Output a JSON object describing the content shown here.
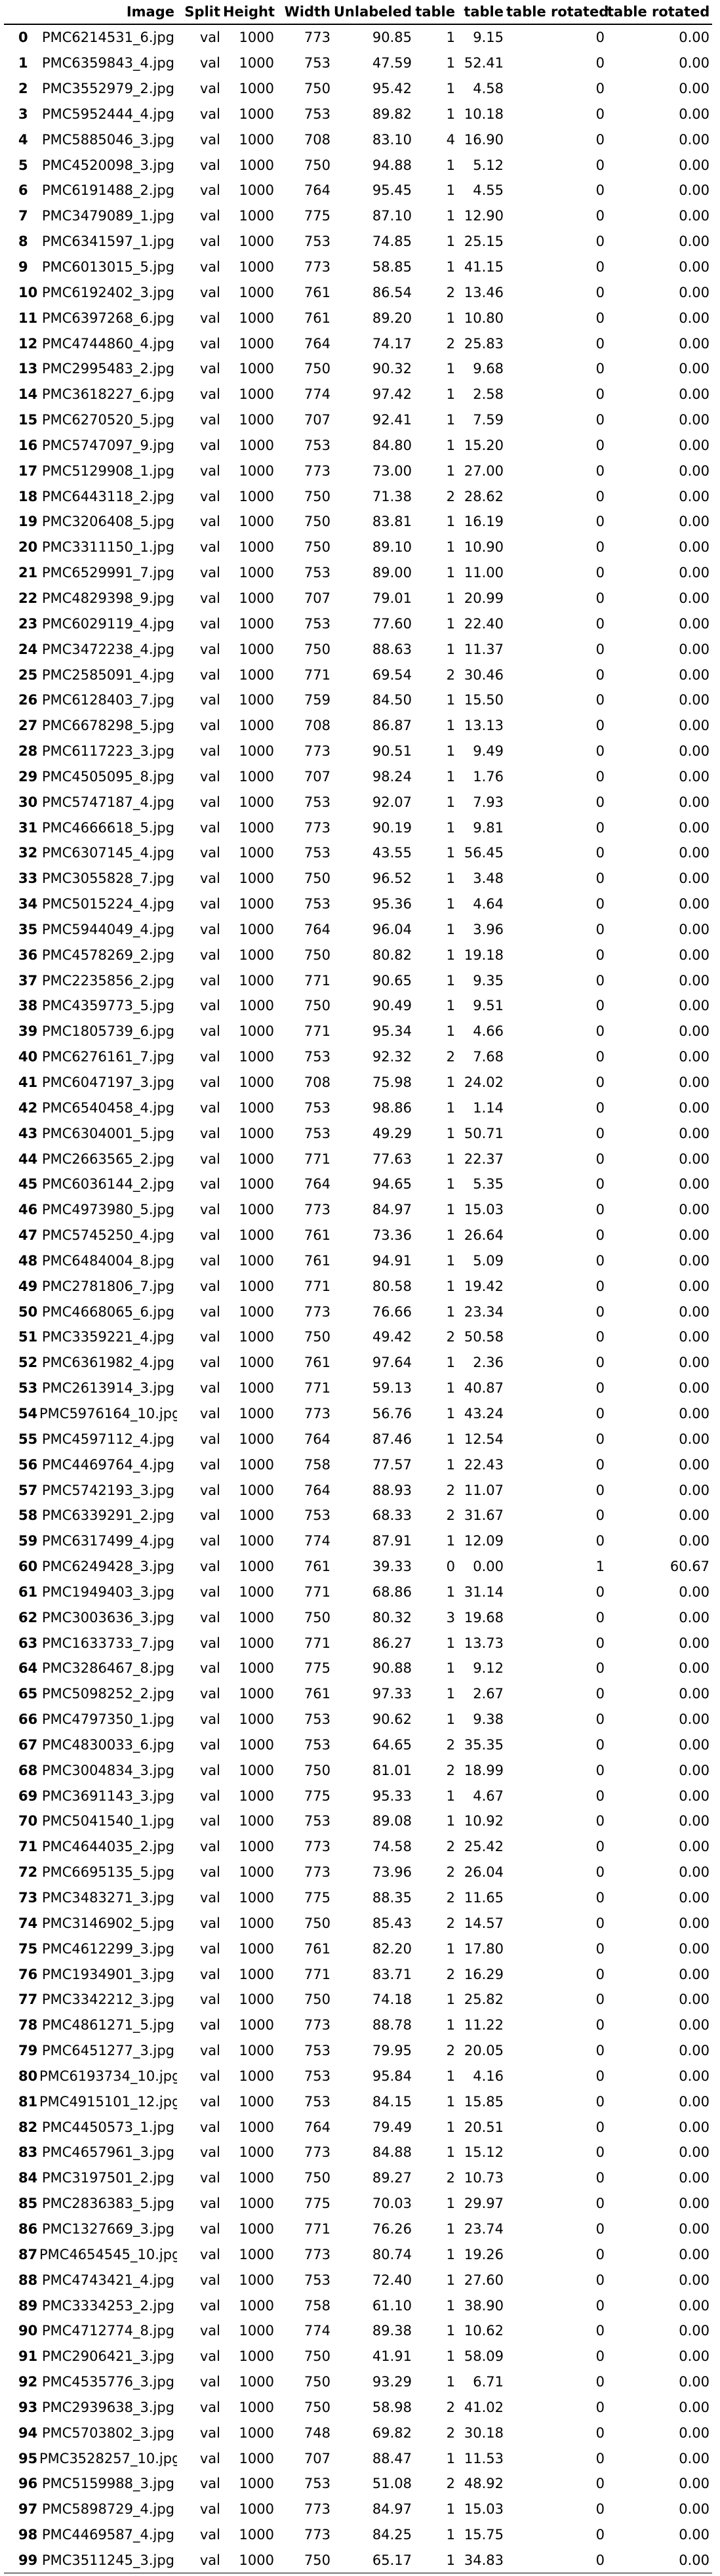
{
  "columns": [
    "",
    "Image",
    "Split",
    "Height",
    "Width",
    "Unlabeled",
    "table",
    "table",
    "table rotated",
    "table rotated"
  ],
  "rows": [
    [
      "0",
      "PMC6214531_6.jpg",
      "val",
      "1000",
      "773",
      "90.85",
      "1",
      "9.15",
      "0",
      "0.00"
    ],
    [
      "1",
      "PMC6359843_4.jpg",
      "val",
      "1000",
      "753",
      "47.59",
      "1",
      "52.41",
      "0",
      "0.00"
    ],
    [
      "2",
      "PMC3552979_2.jpg",
      "val",
      "1000",
      "750",
      "95.42",
      "1",
      "4.58",
      "0",
      "0.00"
    ],
    [
      "3",
      "PMC5952444_4.jpg",
      "val",
      "1000",
      "753",
      "89.82",
      "1",
      "10.18",
      "0",
      "0.00"
    ],
    [
      "4",
      "PMC5885046_3.jpg",
      "val",
      "1000",
      "708",
      "83.10",
      "4",
      "16.90",
      "0",
      "0.00"
    ],
    [
      "5",
      "PMC4520098_3.jpg",
      "val",
      "1000",
      "750",
      "94.88",
      "1",
      "5.12",
      "0",
      "0.00"
    ],
    [
      "6",
      "PMC6191488_2.jpg",
      "val",
      "1000",
      "764",
      "95.45",
      "1",
      "4.55",
      "0",
      "0.00"
    ],
    [
      "7",
      "PMC3479089_1.jpg",
      "val",
      "1000",
      "775",
      "87.10",
      "1",
      "12.90",
      "0",
      "0.00"
    ],
    [
      "8",
      "PMC6341597_1.jpg",
      "val",
      "1000",
      "753",
      "74.85",
      "1",
      "25.15",
      "0",
      "0.00"
    ],
    [
      "9",
      "PMC6013015_5.jpg",
      "val",
      "1000",
      "773",
      "58.85",
      "1",
      "41.15",
      "0",
      "0.00"
    ],
    [
      "10",
      "PMC6192402_3.jpg",
      "val",
      "1000",
      "761",
      "86.54",
      "2",
      "13.46",
      "0",
      "0.00"
    ],
    [
      "11",
      "PMC6397268_6.jpg",
      "val",
      "1000",
      "761",
      "89.20",
      "1",
      "10.80",
      "0",
      "0.00"
    ],
    [
      "12",
      "PMC4744860_4.jpg",
      "val",
      "1000",
      "764",
      "74.17",
      "2",
      "25.83",
      "0",
      "0.00"
    ],
    [
      "13",
      "PMC2995483_2.jpg",
      "val",
      "1000",
      "750",
      "90.32",
      "1",
      "9.68",
      "0",
      "0.00"
    ],
    [
      "14",
      "PMC3618227_6.jpg",
      "val",
      "1000",
      "774",
      "97.42",
      "1",
      "2.58",
      "0",
      "0.00"
    ],
    [
      "15",
      "PMC6270520_5.jpg",
      "val",
      "1000",
      "707",
      "92.41",
      "1",
      "7.59",
      "0",
      "0.00"
    ],
    [
      "16",
      "PMC5747097_9.jpg",
      "val",
      "1000",
      "753",
      "84.80",
      "1",
      "15.20",
      "0",
      "0.00"
    ],
    [
      "17",
      "PMC5129908_1.jpg",
      "val",
      "1000",
      "773",
      "73.00",
      "1",
      "27.00",
      "0",
      "0.00"
    ],
    [
      "18",
      "PMC6443118_2.jpg",
      "val",
      "1000",
      "750",
      "71.38",
      "2",
      "28.62",
      "0",
      "0.00"
    ],
    [
      "19",
      "PMC3206408_5.jpg",
      "val",
      "1000",
      "750",
      "83.81",
      "1",
      "16.19",
      "0",
      "0.00"
    ],
    [
      "20",
      "PMC3311150_1.jpg",
      "val",
      "1000",
      "750",
      "89.10",
      "1",
      "10.90",
      "0",
      "0.00"
    ],
    [
      "21",
      "PMC6529991_7.jpg",
      "val",
      "1000",
      "753",
      "89.00",
      "1",
      "11.00",
      "0",
      "0.00"
    ],
    [
      "22",
      "PMC4829398_9.jpg",
      "val",
      "1000",
      "707",
      "79.01",
      "1",
      "20.99",
      "0",
      "0.00"
    ],
    [
      "23",
      "PMC6029119_4.jpg",
      "val",
      "1000",
      "753",
      "77.60",
      "1",
      "22.40",
      "0",
      "0.00"
    ],
    [
      "24",
      "PMC3472238_4.jpg",
      "val",
      "1000",
      "750",
      "88.63",
      "1",
      "11.37",
      "0",
      "0.00"
    ],
    [
      "25",
      "PMC2585091_4.jpg",
      "val",
      "1000",
      "771",
      "69.54",
      "2",
      "30.46",
      "0",
      "0.00"
    ],
    [
      "26",
      "PMC6128403_7.jpg",
      "val",
      "1000",
      "759",
      "84.50",
      "1",
      "15.50",
      "0",
      "0.00"
    ],
    [
      "27",
      "PMC6678298_5.jpg",
      "val",
      "1000",
      "708",
      "86.87",
      "1",
      "13.13",
      "0",
      "0.00"
    ],
    [
      "28",
      "PMC6117223_3.jpg",
      "val",
      "1000",
      "773",
      "90.51",
      "1",
      "9.49",
      "0",
      "0.00"
    ],
    [
      "29",
      "PMC4505095_8.jpg",
      "val",
      "1000",
      "707",
      "98.24",
      "1",
      "1.76",
      "0",
      "0.00"
    ],
    [
      "30",
      "PMC5747187_4.jpg",
      "val",
      "1000",
      "753",
      "92.07",
      "1",
      "7.93",
      "0",
      "0.00"
    ],
    [
      "31",
      "PMC4666618_5.jpg",
      "val",
      "1000",
      "773",
      "90.19",
      "1",
      "9.81",
      "0",
      "0.00"
    ],
    [
      "32",
      "PMC6307145_4.jpg",
      "val",
      "1000",
      "753",
      "43.55",
      "1",
      "56.45",
      "0",
      "0.00"
    ],
    [
      "33",
      "PMC3055828_7.jpg",
      "val",
      "1000",
      "750",
      "96.52",
      "1",
      "3.48",
      "0",
      "0.00"
    ],
    [
      "34",
      "PMC5015224_4.jpg",
      "val",
      "1000",
      "753",
      "95.36",
      "1",
      "4.64",
      "0",
      "0.00"
    ],
    [
      "35",
      "PMC5944049_4.jpg",
      "val",
      "1000",
      "764",
      "96.04",
      "1",
      "3.96",
      "0",
      "0.00"
    ],
    [
      "36",
      "PMC4578269_2.jpg",
      "val",
      "1000",
      "750",
      "80.82",
      "1",
      "19.18",
      "0",
      "0.00"
    ],
    [
      "37",
      "PMC2235856_2.jpg",
      "val",
      "1000",
      "771",
      "90.65",
      "1",
      "9.35",
      "0",
      "0.00"
    ],
    [
      "38",
      "PMC4359773_5.jpg",
      "val",
      "1000",
      "750",
      "90.49",
      "1",
      "9.51",
      "0",
      "0.00"
    ],
    [
      "39",
      "PMC1805739_6.jpg",
      "val",
      "1000",
      "771",
      "95.34",
      "1",
      "4.66",
      "0",
      "0.00"
    ],
    [
      "40",
      "PMC6276161_7.jpg",
      "val",
      "1000",
      "753",
      "92.32",
      "2",
      "7.68",
      "0",
      "0.00"
    ],
    [
      "41",
      "PMC6047197_3.jpg",
      "val",
      "1000",
      "708",
      "75.98",
      "1",
      "24.02",
      "0",
      "0.00"
    ],
    [
      "42",
      "PMC6540458_4.jpg",
      "val",
      "1000",
      "753",
      "98.86",
      "1",
      "1.14",
      "0",
      "0.00"
    ],
    [
      "43",
      "PMC6304001_5.jpg",
      "val",
      "1000",
      "753",
      "49.29",
      "1",
      "50.71",
      "0",
      "0.00"
    ],
    [
      "44",
      "PMC2663565_2.jpg",
      "val",
      "1000",
      "771",
      "77.63",
      "1",
      "22.37",
      "0",
      "0.00"
    ],
    [
      "45",
      "PMC6036144_2.jpg",
      "val",
      "1000",
      "764",
      "94.65",
      "1",
      "5.35",
      "0",
      "0.00"
    ],
    [
      "46",
      "PMC4973980_5.jpg",
      "val",
      "1000",
      "773",
      "84.97",
      "1",
      "15.03",
      "0",
      "0.00"
    ],
    [
      "47",
      "PMC5745250_4.jpg",
      "val",
      "1000",
      "761",
      "73.36",
      "1",
      "26.64",
      "0",
      "0.00"
    ],
    [
      "48",
      "PMC6484004_8.jpg",
      "val",
      "1000",
      "761",
      "94.91",
      "1",
      "5.09",
      "0",
      "0.00"
    ],
    [
      "49",
      "PMC2781806_7.jpg",
      "val",
      "1000",
      "771",
      "80.58",
      "1",
      "19.42",
      "0",
      "0.00"
    ],
    [
      "50",
      "PMC4668065_6.jpg",
      "val",
      "1000",
      "773",
      "76.66",
      "1",
      "23.34",
      "0",
      "0.00"
    ],
    [
      "51",
      "PMC3359221_4.jpg",
      "val",
      "1000",
      "750",
      "49.42",
      "2",
      "50.58",
      "0",
      "0.00"
    ],
    [
      "52",
      "PMC6361982_4.jpg",
      "val",
      "1000",
      "761",
      "97.64",
      "1",
      "2.36",
      "0",
      "0.00"
    ],
    [
      "53",
      "PMC2613914_3.jpg",
      "val",
      "1000",
      "771",
      "59.13",
      "1",
      "40.87",
      "0",
      "0.00"
    ],
    [
      "54",
      "PMC5976164_10.jpg",
      "val",
      "1000",
      "773",
      "56.76",
      "1",
      "43.24",
      "0",
      "0.00"
    ],
    [
      "55",
      "PMC4597112_4.jpg",
      "val",
      "1000",
      "764",
      "87.46",
      "1",
      "12.54",
      "0",
      "0.00"
    ],
    [
      "56",
      "PMC4469764_4.jpg",
      "val",
      "1000",
      "758",
      "77.57",
      "1",
      "22.43",
      "0",
      "0.00"
    ],
    [
      "57",
      "PMC5742193_3.jpg",
      "val",
      "1000",
      "764",
      "88.93",
      "2",
      "11.07",
      "0",
      "0.00"
    ],
    [
      "58",
      "PMC6339291_2.jpg",
      "val",
      "1000",
      "753",
      "68.33",
      "2",
      "31.67",
      "0",
      "0.00"
    ],
    [
      "59",
      "PMC6317499_4.jpg",
      "val",
      "1000",
      "774",
      "87.91",
      "1",
      "12.09",
      "0",
      "0.00"
    ],
    [
      "60",
      "PMC6249428_3.jpg",
      "val",
      "1000",
      "761",
      "39.33",
      "0",
      "0.00",
      "1",
      "60.67"
    ],
    [
      "61",
      "PMC1949403_3.jpg",
      "val",
      "1000",
      "771",
      "68.86",
      "1",
      "31.14",
      "0",
      "0.00"
    ],
    [
      "62",
      "PMC3003636_3.jpg",
      "val",
      "1000",
      "750",
      "80.32",
      "3",
      "19.68",
      "0",
      "0.00"
    ],
    [
      "63",
      "PMC1633733_7.jpg",
      "val",
      "1000",
      "771",
      "86.27",
      "1",
      "13.73",
      "0",
      "0.00"
    ],
    [
      "64",
      "PMC3286467_8.jpg",
      "val",
      "1000",
      "775",
      "90.88",
      "1",
      "9.12",
      "0",
      "0.00"
    ],
    [
      "65",
      "PMC5098252_2.jpg",
      "val",
      "1000",
      "761",
      "97.33",
      "1",
      "2.67",
      "0",
      "0.00"
    ],
    [
      "66",
      "PMC4797350_1.jpg",
      "val",
      "1000",
      "753",
      "90.62",
      "1",
      "9.38",
      "0",
      "0.00"
    ],
    [
      "67",
      "PMC4830033_6.jpg",
      "val",
      "1000",
      "753",
      "64.65",
      "2",
      "35.35",
      "0",
      "0.00"
    ],
    [
      "68",
      "PMC3004834_3.jpg",
      "val",
      "1000",
      "750",
      "81.01",
      "2",
      "18.99",
      "0",
      "0.00"
    ],
    [
      "69",
      "PMC3691143_3.jpg",
      "val",
      "1000",
      "775",
      "95.33",
      "1",
      "4.67",
      "0",
      "0.00"
    ],
    [
      "70",
      "PMC5041540_1.jpg",
      "val",
      "1000",
      "753",
      "89.08",
      "1",
      "10.92",
      "0",
      "0.00"
    ],
    [
      "71",
      "PMC4644035_2.jpg",
      "val",
      "1000",
      "773",
      "74.58",
      "2",
      "25.42",
      "0",
      "0.00"
    ],
    [
      "72",
      "PMC6695135_5.jpg",
      "val",
      "1000",
      "773",
      "73.96",
      "2",
      "26.04",
      "0",
      "0.00"
    ],
    [
      "73",
      "PMC3483271_3.jpg",
      "val",
      "1000",
      "775",
      "88.35",
      "2",
      "11.65",
      "0",
      "0.00"
    ],
    [
      "74",
      "PMC3146902_5.jpg",
      "val",
      "1000",
      "750",
      "85.43",
      "2",
      "14.57",
      "0",
      "0.00"
    ],
    [
      "75",
      "PMC4612299_3.jpg",
      "val",
      "1000",
      "761",
      "82.20",
      "1",
      "17.80",
      "0",
      "0.00"
    ],
    [
      "76",
      "PMC1934901_3.jpg",
      "val",
      "1000",
      "771",
      "83.71",
      "2",
      "16.29",
      "0",
      "0.00"
    ],
    [
      "77",
      "PMC3342212_3.jpg",
      "val",
      "1000",
      "750",
      "74.18",
      "1",
      "25.82",
      "0",
      "0.00"
    ],
    [
      "78",
      "PMC4861271_5.jpg",
      "val",
      "1000",
      "773",
      "88.78",
      "1",
      "11.22",
      "0",
      "0.00"
    ],
    [
      "79",
      "PMC6451277_3.jpg",
      "val",
      "1000",
      "753",
      "79.95",
      "2",
      "20.05",
      "0",
      "0.00"
    ],
    [
      "80",
      "PMC6193734_10.jpg",
      "val",
      "1000",
      "753",
      "95.84",
      "1",
      "4.16",
      "0",
      "0.00"
    ],
    [
      "81",
      "PMC4915101_12.jpg",
      "val",
      "1000",
      "753",
      "84.15",
      "1",
      "15.85",
      "0",
      "0.00"
    ],
    [
      "82",
      "PMC4450573_1.jpg",
      "val",
      "1000",
      "764",
      "79.49",
      "1",
      "20.51",
      "0",
      "0.00"
    ],
    [
      "83",
      "PMC4657961_3.jpg",
      "val",
      "1000",
      "773",
      "84.88",
      "1",
      "15.12",
      "0",
      "0.00"
    ],
    [
      "84",
      "PMC3197501_2.jpg",
      "val",
      "1000",
      "750",
      "89.27",
      "2",
      "10.73",
      "0",
      "0.00"
    ],
    [
      "85",
      "PMC2836383_5.jpg",
      "val",
      "1000",
      "775",
      "70.03",
      "1",
      "29.97",
      "0",
      "0.00"
    ],
    [
      "86",
      "PMC1327669_3.jpg",
      "val",
      "1000",
      "771",
      "76.26",
      "1",
      "23.74",
      "0",
      "0.00"
    ],
    [
      "87",
      "PMC4654545_10.jpg",
      "val",
      "1000",
      "773",
      "80.74",
      "1",
      "19.26",
      "0",
      "0.00"
    ],
    [
      "88",
      "PMC4743421_4.jpg",
      "val",
      "1000",
      "753",
      "72.40",
      "1",
      "27.60",
      "0",
      "0.00"
    ],
    [
      "89",
      "PMC3334253_2.jpg",
      "val",
      "1000",
      "758",
      "61.10",
      "1",
      "38.90",
      "0",
      "0.00"
    ],
    [
      "90",
      "PMC4712774_8.jpg",
      "val",
      "1000",
      "774",
      "89.38",
      "1",
      "10.62",
      "0",
      "0.00"
    ],
    [
      "91",
      "PMC2906421_3.jpg",
      "val",
      "1000",
      "750",
      "41.91",
      "1",
      "58.09",
      "0",
      "0.00"
    ],
    [
      "92",
      "PMC4535776_3.jpg",
      "val",
      "1000",
      "750",
      "93.29",
      "1",
      "6.71",
      "0",
      "0.00"
    ],
    [
      "93",
      "PMC2939638_3.jpg",
      "val",
      "1000",
      "750",
      "58.98",
      "2",
      "41.02",
      "0",
      "0.00"
    ],
    [
      "94",
      "PMC5703802_3.jpg",
      "val",
      "1000",
      "748",
      "69.82",
      "2",
      "30.18",
      "0",
      "0.00"
    ],
    [
      "95",
      "PMC3528257_10.jpg",
      "val",
      "1000",
      "707",
      "88.47",
      "1",
      "11.53",
      "0",
      "0.00"
    ],
    [
      "96",
      "PMC5159988_3.jpg",
      "val",
      "1000",
      "753",
      "51.08",
      "2",
      "48.92",
      "0",
      "0.00"
    ],
    [
      "97",
      "PMC5898729_4.jpg",
      "val",
      "1000",
      "773",
      "84.97",
      "1",
      "15.03",
      "0",
      "0.00"
    ],
    [
      "98",
      "PMC4469587_4.jpg",
      "val",
      "1000",
      "773",
      "84.25",
      "1",
      "15.75",
      "0",
      "0.00"
    ],
    [
      "99",
      "PMC3511245_3.jpg",
      "val",
      "1000",
      "750",
      "65.17",
      "1",
      "34.83",
      "0",
      "0.00"
    ]
  ]
}
